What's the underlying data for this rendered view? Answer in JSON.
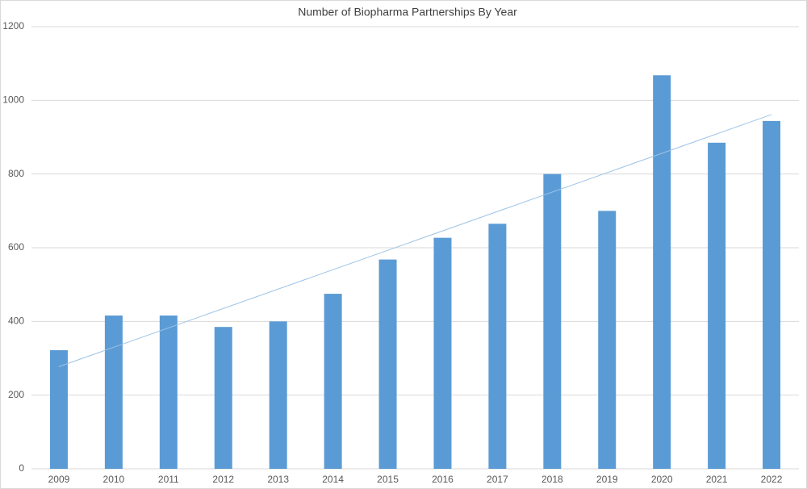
{
  "chart_data": {
    "type": "bar",
    "title": "Number of Biopharma Partnerships By Year",
    "categories": [
      "2009",
      "2010",
      "2011",
      "2012",
      "2013",
      "2014",
      "2015",
      "2016",
      "2017",
      "2018",
      "2019",
      "2020",
      "2021",
      "2022"
    ],
    "values": [
      322,
      416,
      416,
      385,
      400,
      475,
      568,
      627,
      665,
      800,
      700,
      1068,
      885,
      944
    ],
    "color": "#5b9bd5",
    "ylim": [
      0,
      1200
    ],
    "yticks": [
      0,
      200,
      400,
      600,
      800,
      1000,
      1200
    ],
    "grid": true,
    "trendline": true,
    "trendline_color": "#9dc3e6"
  }
}
